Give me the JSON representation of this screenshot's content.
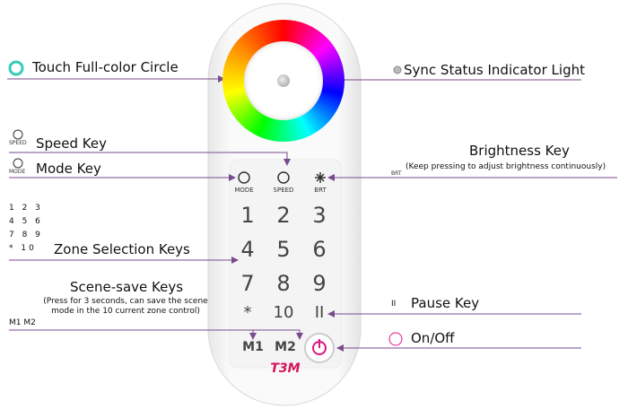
{
  "callouts": {
    "color_circle": "Touch Full-color Circle",
    "sync": "Sync Status Indicator Light",
    "speed": "Speed Key",
    "mode": "Mode Key",
    "brightness": "Brightness Key",
    "brightness_note": "(Keep pressing to adjust brightness continuously)",
    "zone": "Zone Selection Keys",
    "scene": "Scene-save Keys",
    "scene_note": "(Press for 3 seconds, can save the scene mode in the 10 current zone control)",
    "pause": "Pause Key",
    "onoff": "On/Off"
  },
  "legend_icons": {
    "speed": "SPEED",
    "mode": "MODE",
    "brt": "BRT",
    "zone_rows": [
      "1 2 3",
      "4 5 6",
      "7 8 9",
      "* 10"
    ],
    "scene": "M1 M2",
    "pause": "II"
  },
  "remote": {
    "top_keys": [
      "MODE",
      "SPEED",
      "BRT"
    ],
    "number_keys": [
      "1",
      "2",
      "3",
      "4",
      "5",
      "6",
      "7",
      "8",
      "9",
      "*",
      "10",
      "II"
    ],
    "scene_keys": [
      "M1",
      "M2"
    ],
    "logo": "T3M"
  }
}
